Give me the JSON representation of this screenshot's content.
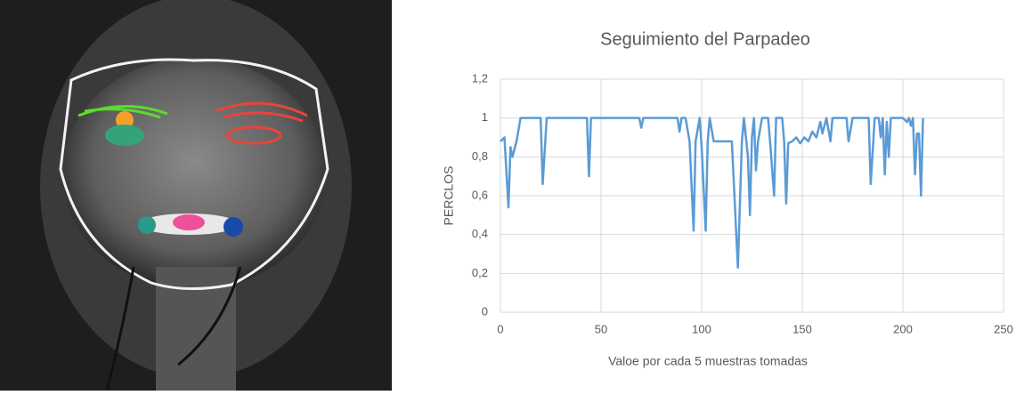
{
  "chart_data": {
    "type": "line",
    "title": "Seguimiento del Parpadeo",
    "x_label": "Valoe por cada 5 muestras tomadas",
    "y_label": "PERCLOS",
    "xlim": [
      0,
      250
    ],
    "xticks": [
      0,
      50,
      100,
      150,
      200,
      250
    ],
    "ylim": [
      0,
      1.2
    ],
    "yticks": [
      0,
      {
        "value": 0.2,
        "label": "0,2"
      },
      {
        "value": 0.4,
        "label": "0,4"
      },
      {
        "value": 0.6,
        "label": "0,6"
      },
      {
        "value": 0.8,
        "label": "0,8"
      },
      1,
      {
        "value": 1.2,
        "label": "1,2"
      }
    ],
    "grid": true,
    "series": [
      {
        "name": "PERCLOS",
        "color": "#5b9bd5",
        "x": [
          0,
          2,
          4,
          5,
          6,
          8,
          10,
          20,
          21,
          23,
          43,
          44,
          45,
          69,
          70,
          71,
          88,
          89,
          90,
          92,
          94,
          96,
          97,
          99,
          100,
          102,
          103,
          104,
          106,
          113,
          115,
          118,
          120,
          121,
          123,
          124,
          125,
          126,
          127,
          128,
          130,
          133,
          134,
          136,
          137,
          140,
          141,
          142,
          143,
          145,
          147,
          149,
          151,
          153,
          155,
          157,
          159,
          160,
          162,
          164,
          165,
          172,
          173,
          175,
          183,
          184,
          186,
          188,
          189,
          190,
          191,
          192,
          193,
          194,
          200,
          202,
          203,
          204,
          205,
          206,
          207,
          208,
          209,
          210
        ],
        "values": [
          0.88,
          0.9,
          0.54,
          0.85,
          0.8,
          0.88,
          1,
          1,
          0.66,
          1,
          1,
          0.7,
          1,
          1,
          0.95,
          1,
          1,
          0.93,
          1,
          1,
          0.88,
          0.42,
          0.88,
          1,
          0.85,
          0.42,
          0.88,
          1,
          0.88,
          0.88,
          0.88,
          0.23,
          0.88,
          1,
          0.8,
          0.5,
          0.9,
          1,
          0.73,
          0.88,
          1,
          1,
          0.88,
          0.6,
          1,
          1,
          0.88,
          0.56,
          0.87,
          0.88,
          0.9,
          0.87,
          0.9,
          0.88,
          0.93,
          0.9,
          0.98,
          0.92,
          1,
          0.88,
          1,
          1,
          0.88,
          1,
          1,
          0.66,
          1,
          1,
          0.9,
          1,
          0.71,
          0.98,
          0.8,
          1,
          1,
          0.98,
          1,
          0.96,
          1,
          0.71,
          0.92,
          0.92,
          0.6,
          1
        ]
      }
    ]
  }
}
